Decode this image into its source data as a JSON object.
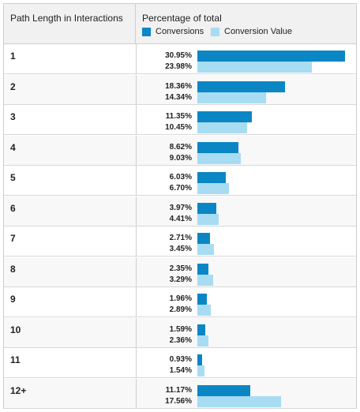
{
  "header": {
    "col1": "Path Length in Interactions",
    "col2": "Percentage of total",
    "legend_conversions": "Conversions",
    "legend_value": "Conversion Value"
  },
  "colors": {
    "conversions": "#0b86c4",
    "conversion_value": "#a8dcf2"
  },
  "chart_data": {
    "type": "bar",
    "orientation": "horizontal",
    "categories": [
      "1",
      "2",
      "3",
      "4",
      "5",
      "6",
      "7",
      "8",
      "9",
      "10",
      "11",
      "12+"
    ],
    "series": [
      {
        "name": "Conversions",
        "values": [
          30.95,
          18.36,
          11.35,
          8.62,
          6.03,
          3.97,
          2.71,
          2.35,
          1.96,
          1.59,
          0.93,
          11.17
        ],
        "labels": [
          "30.95%",
          "18.36%",
          "11.35%",
          "8.62%",
          "6.03%",
          "3.97%",
          "2.71%",
          "2.35%",
          "1.96%",
          "1.59%",
          "0.93%",
          "11.17%"
        ]
      },
      {
        "name": "Conversion Value",
        "values": [
          23.98,
          14.34,
          10.45,
          9.03,
          6.7,
          4.41,
          3.45,
          3.29,
          2.89,
          2.36,
          1.54,
          17.56
        ],
        "labels": [
          "23.98%",
          "14.34%",
          "10.45%",
          "9.03%",
          "6.70%",
          "4.41%",
          "3.45%",
          "3.29%",
          "2.89%",
          "2.36%",
          "1.54%",
          "17.56%"
        ]
      }
    ],
    "xlim": [
      0,
      30.95
    ]
  }
}
